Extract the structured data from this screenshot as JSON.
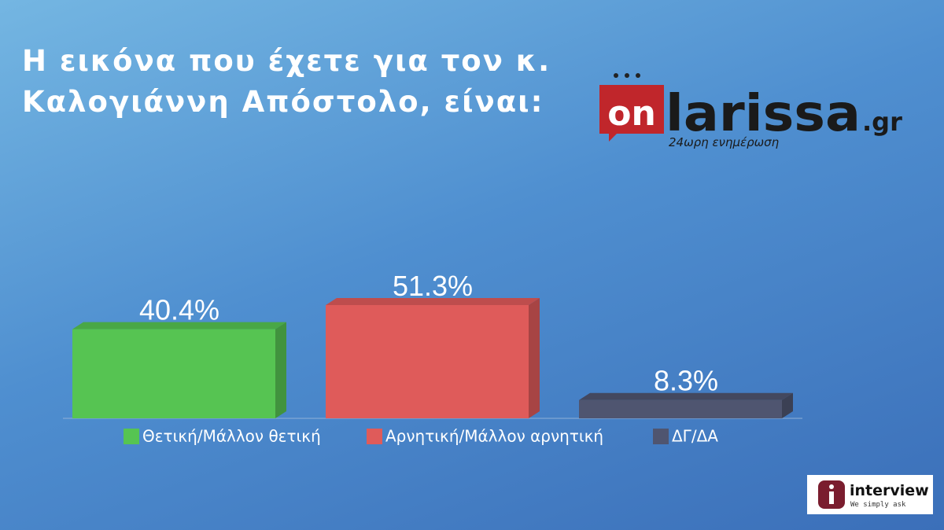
{
  "chart_data": {
    "type": "bar3d",
    "title": "Η εικόνα που έχετε για τον κ. Καλογιάννη Απόστολο, είναι:",
    "categories": [
      "Θετική/Μάλλον θετική",
      "Αρνητική/Μάλλον αρνητική",
      "ΔΓ/ΔΑ"
    ],
    "values": [
      40.4,
      51.3,
      8.3
    ],
    "value_labels": [
      "40.4%",
      "51.3%",
      "8.3%"
    ],
    "colors": [
      "#56c452",
      "#df5b5a",
      "#4f5570"
    ],
    "legend": "bottom"
  },
  "logos": {
    "site": {
      "on": "on",
      "name": "larissa",
      "domain": ".gr",
      "tagline": "24ωρη ενημέρωση"
    },
    "pollster": {
      "name": "interview",
      "slogan": "We simply ask"
    }
  }
}
